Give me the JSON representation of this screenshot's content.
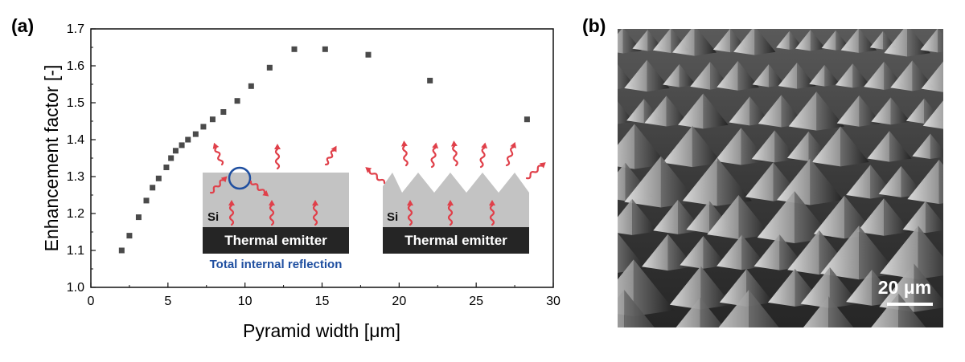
{
  "panel_a_label": "(a)",
  "panel_b_label": "(b)",
  "chart_data": {
    "type": "scatter",
    "title": "",
    "xlabel": "Pyramid width [μm]",
    "ylabel": "Enhancement factor [-]",
    "xlim": [
      0,
      30
    ],
    "ylim": [
      1.0,
      1.7
    ],
    "x_ticks": [
      "0",
      "5",
      "10",
      "15",
      "20",
      "25",
      "30"
    ],
    "y_ticks": [
      "1.0",
      "1.1",
      "1.2",
      "1.3",
      "1.4",
      "1.5",
      "1.6",
      "1.7"
    ],
    "marker_color": "#4a4a4a",
    "points": [
      {
        "x": 2.0,
        "y": 1.1
      },
      {
        "x": 2.5,
        "y": 1.14
      },
      {
        "x": 3.1,
        "y": 1.19
      },
      {
        "x": 3.6,
        "y": 1.235
      },
      {
        "x": 4.0,
        "y": 1.27
      },
      {
        "x": 4.4,
        "y": 1.295
      },
      {
        "x": 4.9,
        "y": 1.325
      },
      {
        "x": 5.2,
        "y": 1.35
      },
      {
        "x": 5.5,
        "y": 1.37
      },
      {
        "x": 5.9,
        "y": 1.385
      },
      {
        "x": 6.3,
        "y": 1.4
      },
      {
        "x": 6.8,
        "y": 1.415
      },
      {
        "x": 7.3,
        "y": 1.435
      },
      {
        "x": 7.9,
        "y": 1.455
      },
      {
        "x": 8.6,
        "y": 1.475
      },
      {
        "x": 9.5,
        "y": 1.505
      },
      {
        "x": 10.4,
        "y": 1.545
      },
      {
        "x": 11.6,
        "y": 1.595
      },
      {
        "x": 13.2,
        "y": 1.645
      },
      {
        "x": 15.2,
        "y": 1.645
      },
      {
        "x": 18.0,
        "y": 1.63
      },
      {
        "x": 22.0,
        "y": 1.56
      },
      {
        "x": 28.3,
        "y": 1.455
      }
    ]
  },
  "inset": {
    "si_label": "Si",
    "emitter_label": "Thermal emitter",
    "tir_label": "Total internal reflection",
    "tir_color": "#1f4fa0",
    "wave_color": "#e0404a"
  },
  "sem": {
    "scale_label": "20 μm"
  }
}
